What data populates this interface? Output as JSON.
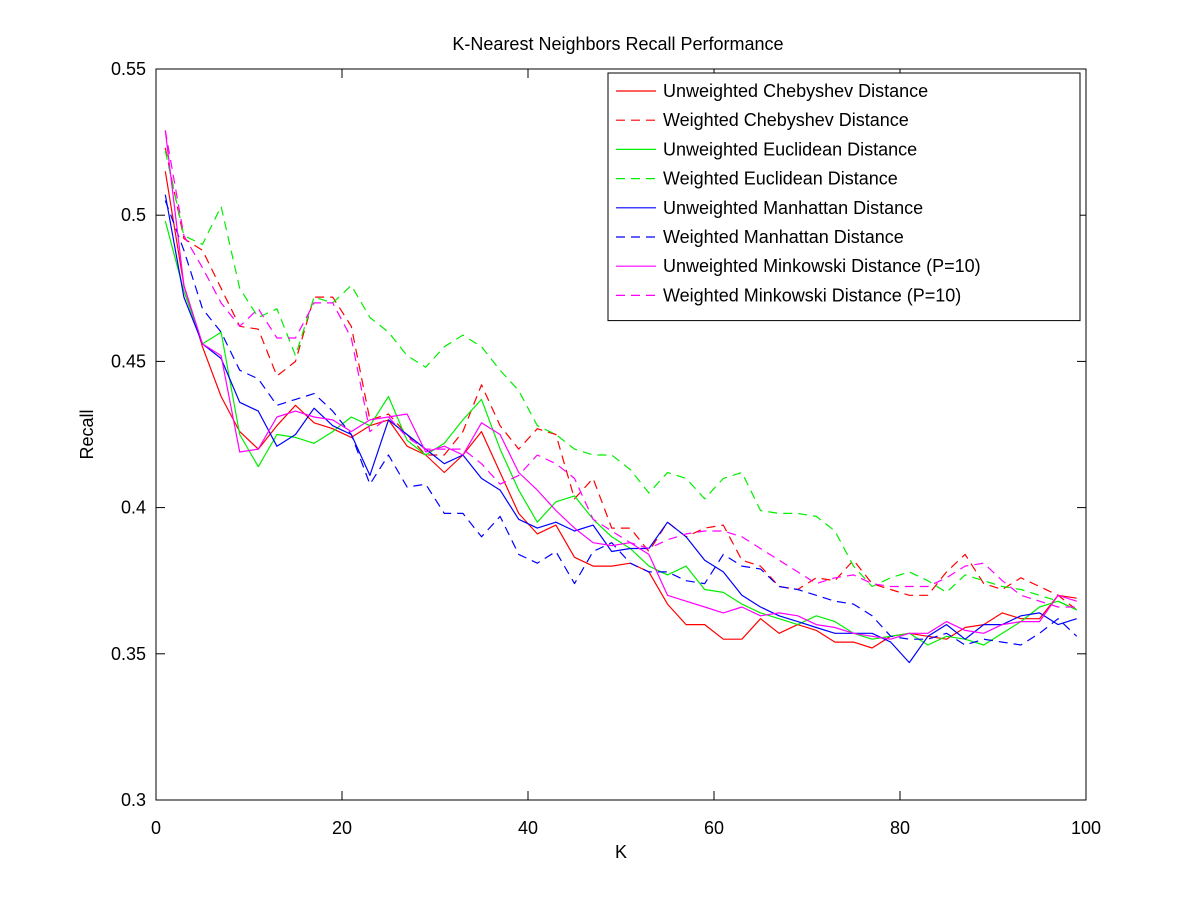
{
  "chart_data": {
    "type": "line",
    "title": "K-Nearest Neighbors Recall Performance",
    "xlabel": "K",
    "ylabel": "Recall",
    "xlim": [
      0,
      100
    ],
    "ylim": [
      0.3,
      0.55
    ],
    "xticks": [
      "0",
      "20",
      "40",
      "60",
      "80",
      "100"
    ],
    "yticks": [
      "0.3",
      "0.35",
      "0.4",
      "0.45",
      "0.5",
      "0.55"
    ],
    "grid": false,
    "legend_position": "top-right",
    "x": [
      1,
      3,
      5,
      7,
      9,
      11,
      13,
      15,
      17,
      19,
      21,
      23,
      25,
      27,
      29,
      31,
      33,
      35,
      37,
      39,
      41,
      43,
      45,
      47,
      49,
      51,
      53,
      55,
      57,
      59,
      61,
      63,
      65,
      67,
      69,
      71,
      73,
      75,
      77,
      79,
      81,
      83,
      85,
      87,
      89,
      91,
      93,
      95,
      97,
      99
    ],
    "series": [
      {
        "name": "Unweighted Chebyshev Distance",
        "color": "#ff0000",
        "dash": "solid",
        "values": [
          0.515,
          0.476,
          0.455,
          0.438,
          0.426,
          0.42,
          0.428,
          0.435,
          0.429,
          0.427,
          0.424,
          0.428,
          0.43,
          0.421,
          0.418,
          0.412,
          0.418,
          0.426,
          0.412,
          0.398,
          0.391,
          0.394,
          0.383,
          0.38,
          0.38,
          0.381,
          0.378,
          0.367,
          0.36,
          0.36,
          0.355,
          0.355,
          0.362,
          0.357,
          0.36,
          0.358,
          0.354,
          0.354,
          0.352,
          0.356,
          0.357,
          0.356,
          0.355,
          0.359,
          0.36,
          0.364,
          0.362,
          0.362,
          0.37,
          0.369
        ]
      },
      {
        "name": "Weighted Chebyshev Distance",
        "color": "#ff0000",
        "dash": "dashed",
        "values": [
          0.523,
          0.492,
          0.488,
          0.475,
          0.462,
          0.461,
          0.445,
          0.45,
          0.472,
          0.472,
          0.462,
          0.43,
          0.432,
          0.425,
          0.418,
          0.418,
          0.426,
          0.442,
          0.428,
          0.42,
          0.427,
          0.425,
          0.403,
          0.41,
          0.393,
          0.393,
          0.385,
          0.395,
          0.39,
          0.393,
          0.394,
          0.382,
          0.38,
          0.373,
          0.372,
          0.376,
          0.375,
          0.382,
          0.374,
          0.372,
          0.37,
          0.37,
          0.378,
          0.384,
          0.374,
          0.372,
          0.376,
          0.373,
          0.37,
          0.365
        ]
      },
      {
        "name": "Unweighted Euclidean Distance",
        "color": "#00ee00",
        "dash": "solid",
        "values": [
          0.498,
          0.474,
          0.456,
          0.46,
          0.425,
          0.414,
          0.425,
          0.424,
          0.422,
          0.426,
          0.431,
          0.428,
          0.438,
          0.423,
          0.418,
          0.422,
          0.43,
          0.437,
          0.42,
          0.406,
          0.395,
          0.402,
          0.404,
          0.396,
          0.39,
          0.386,
          0.38,
          0.377,
          0.38,
          0.372,
          0.371,
          0.367,
          0.364,
          0.362,
          0.36,
          0.363,
          0.361,
          0.357,
          0.355,
          0.356,
          0.357,
          0.353,
          0.356,
          0.355,
          0.353,
          0.357,
          0.361,
          0.366,
          0.368,
          0.365
        ]
      },
      {
        "name": "Weighted Euclidean Distance",
        "color": "#00ee00",
        "dash": "dashed",
        "values": [
          0.522,
          0.493,
          0.49,
          0.503,
          0.475,
          0.465,
          0.468,
          0.452,
          0.472,
          0.47,
          0.476,
          0.465,
          0.46,
          0.452,
          0.448,
          0.455,
          0.459,
          0.455,
          0.447,
          0.44,
          0.428,
          0.425,
          0.42,
          0.418,
          0.418,
          0.413,
          0.405,
          0.412,
          0.41,
          0.403,
          0.41,
          0.412,
          0.399,
          0.398,
          0.398,
          0.397,
          0.392,
          0.38,
          0.373,
          0.376,
          0.378,
          0.375,
          0.371,
          0.377,
          0.375,
          0.373,
          0.372,
          0.37,
          0.368,
          0.365
        ]
      },
      {
        "name": "Unweighted Manhattan Distance",
        "color": "#0000ff",
        "dash": "solid",
        "values": [
          0.507,
          0.472,
          0.456,
          0.451,
          0.436,
          0.433,
          0.421,
          0.425,
          0.434,
          0.428,
          0.425,
          0.411,
          0.43,
          0.425,
          0.42,
          0.415,
          0.418,
          0.41,
          0.406,
          0.396,
          0.393,
          0.395,
          0.392,
          0.394,
          0.385,
          0.386,
          0.386,
          0.395,
          0.39,
          0.382,
          0.378,
          0.37,
          0.366,
          0.363,
          0.361,
          0.359,
          0.357,
          0.357,
          0.357,
          0.354,
          0.347,
          0.356,
          0.36,
          0.355,
          0.36,
          0.36,
          0.363,
          0.364,
          0.36,
          0.362
        ]
      },
      {
        "name": "Weighted Manhattan Distance",
        "color": "#0000ff",
        "dash": "dashed",
        "values": [
          0.505,
          0.488,
          0.468,
          0.46,
          0.447,
          0.444,
          0.435,
          0.437,
          0.439,
          0.433,
          0.425,
          0.408,
          0.418,
          0.407,
          0.408,
          0.398,
          0.398,
          0.39,
          0.397,
          0.384,
          0.381,
          0.385,
          0.374,
          0.385,
          0.388,
          0.381,
          0.378,
          0.378,
          0.375,
          0.374,
          0.384,
          0.38,
          0.379,
          0.373,
          0.372,
          0.37,
          0.368,
          0.367,
          0.363,
          0.356,
          0.355,
          0.355,
          0.357,
          0.353,
          0.355,
          0.354,
          0.353,
          0.357,
          0.362,
          0.356
        ]
      },
      {
        "name": "Unweighted Minkowski Distance (P=10)",
        "color": "#ff00ff",
        "dash": "solid",
        "values": [
          0.529,
          0.476,
          0.456,
          0.452,
          0.419,
          0.42,
          0.431,
          0.433,
          0.431,
          0.43,
          0.426,
          0.43,
          0.431,
          0.432,
          0.419,
          0.421,
          0.418,
          0.429,
          0.425,
          0.412,
          0.406,
          0.399,
          0.393,
          0.388,
          0.387,
          0.388,
          0.384,
          0.37,
          0.368,
          0.366,
          0.364,
          0.366,
          0.363,
          0.364,
          0.363,
          0.36,
          0.359,
          0.357,
          0.356,
          0.355,
          0.357,
          0.357,
          0.361,
          0.358,
          0.357,
          0.36,
          0.361,
          0.361,
          0.37,
          0.368
        ]
      },
      {
        "name": "Weighted Minkowski Distance (P=10)",
        "color": "#ff00ff",
        "dash": "dashed",
        "values": [
          0.529,
          0.493,
          0.482,
          0.47,
          0.462,
          0.468,
          0.458,
          0.458,
          0.47,
          0.47,
          0.458,
          0.426,
          0.431,
          0.424,
          0.42,
          0.42,
          0.42,
          0.415,
          0.408,
          0.411,
          0.418,
          0.415,
          0.41,
          0.396,
          0.392,
          0.388,
          0.386,
          0.389,
          0.391,
          0.392,
          0.392,
          0.39,
          0.386,
          0.382,
          0.378,
          0.374,
          0.376,
          0.377,
          0.374,
          0.373,
          0.373,
          0.373,
          0.376,
          0.38,
          0.381,
          0.375,
          0.37,
          0.368,
          0.366,
          0.366
        ]
      }
    ]
  }
}
